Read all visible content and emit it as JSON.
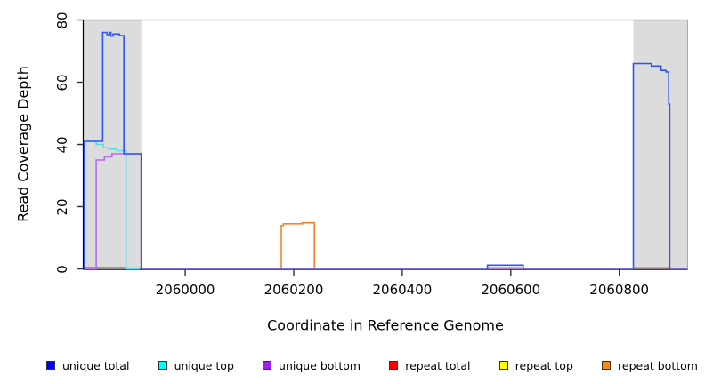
{
  "figure": {
    "xlabel": "Coordinate in Reference Genome",
    "ylabel": "Read Coverage Depth"
  },
  "legend": {
    "items": [
      {
        "label": "unique total",
        "color": "#0000ff"
      },
      {
        "label": "unique top",
        "color": "#00ffff"
      },
      {
        "label": "unique bottom",
        "color": "#a020f0"
      },
      {
        "label": "repeat total",
        "color": "#ff0000"
      },
      {
        "label": "repeat top",
        "color": "#ffff00"
      },
      {
        "label": "repeat bottom",
        "color": "#ff8c00"
      }
    ]
  },
  "chart_data": {
    "type": "line",
    "step": true,
    "title": "",
    "xlabel": "Coordinate in Reference Genome",
    "ylabel": "Read Coverage Depth",
    "xlim": [
      2059812,
      2060926
    ],
    "ylim": [
      0,
      80
    ],
    "x_ticks": [
      2060000,
      2060200,
      2060400,
      2060600,
      2060800
    ],
    "y_ticks": [
      0,
      20,
      40,
      60,
      80
    ],
    "grid": false,
    "legend_position": "bottom",
    "band_color": "#dcdcdc",
    "highlight_bands": [
      {
        "x0": 2059813,
        "x1": 2059919
      },
      {
        "x0": 2060826,
        "x1": 2060926
      }
    ],
    "series": [
      {
        "name": "unique total",
        "color": "#0000ff",
        "line_color": "#2f55f0",
        "z": 6,
        "segments": [
          {
            "pts": [
              [
                2059814,
                0
              ],
              [
                2059814,
                41
              ],
              [
                2059848,
                41
              ],
              [
                2059848,
                76
              ],
              [
                2059856,
                76
              ],
              [
                2059856,
                75.3
              ],
              [
                2059860,
                75.3
              ],
              [
                2059860,
                76
              ],
              [
                2059863,
                76
              ],
              [
                2059863,
                74.8
              ],
              [
                2059867,
                74.8
              ],
              [
                2059867,
                75.5
              ],
              [
                2059879,
                75.5
              ],
              [
                2059879,
                75
              ],
              [
                2059887,
                75
              ],
              [
                2059887,
                37
              ],
              [
                2059919,
                37
              ],
              [
                2059919,
                0
              ]
            ]
          },
          {
            "pts": [
              [
                2059919,
                0
              ],
              [
                2060557,
                0
              ]
            ],
            "opacity": 0.4
          },
          {
            "pts": [
              [
                2060557,
                0
              ],
              [
                2060557,
                1.2
              ],
              [
                2060623,
                1.2
              ],
              [
                2060623,
                0
              ]
            ]
          },
          {
            "pts": [
              [
                2060623,
                0
              ],
              [
                2060826,
                0
              ]
            ],
            "opacity": 0.4
          },
          {
            "pts": [
              [
                2060826,
                0
              ],
              [
                2060826,
                66
              ],
              [
                2060859,
                66
              ],
              [
                2060859,
                65.2
              ],
              [
                2060877,
                65.2
              ],
              [
                2060877,
                63.8
              ],
              [
                2060886,
                63.8
              ],
              [
                2060886,
                63.3
              ],
              [
                2060891,
                63.3
              ],
              [
                2060891,
                53
              ],
              [
                2060893,
                53
              ],
              [
                2060893,
                0
              ]
            ]
          },
          {
            "pts": [
              [
                2060893,
                0
              ],
              [
                2060926,
                0
              ]
            ],
            "opacity": 0.4
          }
        ]
      },
      {
        "name": "unique top",
        "color": "#00ffff",
        "line_color": "#58dde8",
        "z": 3,
        "segments": [
          {
            "pts": [
              [
                2059814,
                41
              ],
              [
                2059836,
                41
              ],
              [
                2059836,
                40
              ],
              [
                2059849,
                40
              ],
              [
                2059849,
                39
              ],
              [
                2059859,
                39
              ],
              [
                2059859,
                38.5
              ],
              [
                2059874,
                38.5
              ],
              [
                2059874,
                38
              ],
              [
                2059891,
                38
              ],
              [
                2059891,
                0
              ],
              [
                2059916,
                0
              ]
            ]
          }
        ]
      },
      {
        "name": "unique bottom",
        "color": "#a020f0",
        "line_color": "#b46df0",
        "z": 5,
        "segments": [
          {
            "pts": [
              [
                2059814,
                0
              ],
              [
                2059836,
                0
              ],
              [
                2059836,
                35
              ],
              [
                2059851,
                35
              ],
              [
                2059851,
                36
              ],
              [
                2059865,
                36
              ],
              [
                2059865,
                37
              ],
              [
                2059919,
                37
              ],
              [
                2059919,
                0
              ]
            ]
          },
          {
            "pts": [
              [
                2059919,
                0
              ],
              [
                2060826,
                0
              ]
            ],
            "opacity": 0.55
          },
          {
            "pts": [
              [
                2060894,
                0
              ],
              [
                2060926,
                0
              ]
            ],
            "opacity": 0.55
          }
        ]
      },
      {
        "name": "repeat total",
        "color": "#ff0000",
        "line_color": "#ee5566",
        "z": 1,
        "segments": [
          {
            "pts": [
              [
                2059815,
                0.4
              ],
              [
                2059851,
                0.4
              ]
            ]
          },
          {
            "pts": [
              [
                2060558,
                0.35
              ],
              [
                2060623,
                0.35
              ]
            ]
          },
          {
            "pts": [
              [
                2060826,
                0.35
              ],
              [
                2060893,
                0.35
              ]
            ]
          }
        ]
      },
      {
        "name": "repeat top",
        "color": "#ffff00",
        "line_color": "#9fd49f",
        "z": 2,
        "segments": [
          {
            "pts": [
              [
                2059889,
                0.3
              ],
              [
                2059918,
                0.3
              ]
            ]
          }
        ]
      },
      {
        "name": "repeat bottom",
        "color": "#ff8c00",
        "line_color": "#f8822c",
        "z": 4,
        "segments": [
          {
            "pts": [
              [
                2059851,
                0.5
              ],
              [
                2059889,
                0.5
              ]
            ]
          },
          {
            "pts": [
              [
                2060177,
                0
              ],
              [
                2060177,
                13.9
              ],
              [
                2060181,
                13.9
              ],
              [
                2060181,
                14.5
              ],
              [
                2060216,
                14.5
              ],
              [
                2060216,
                14.8
              ],
              [
                2060238,
                14.8
              ],
              [
                2060238,
                0
              ]
            ]
          }
        ]
      }
    ]
  }
}
